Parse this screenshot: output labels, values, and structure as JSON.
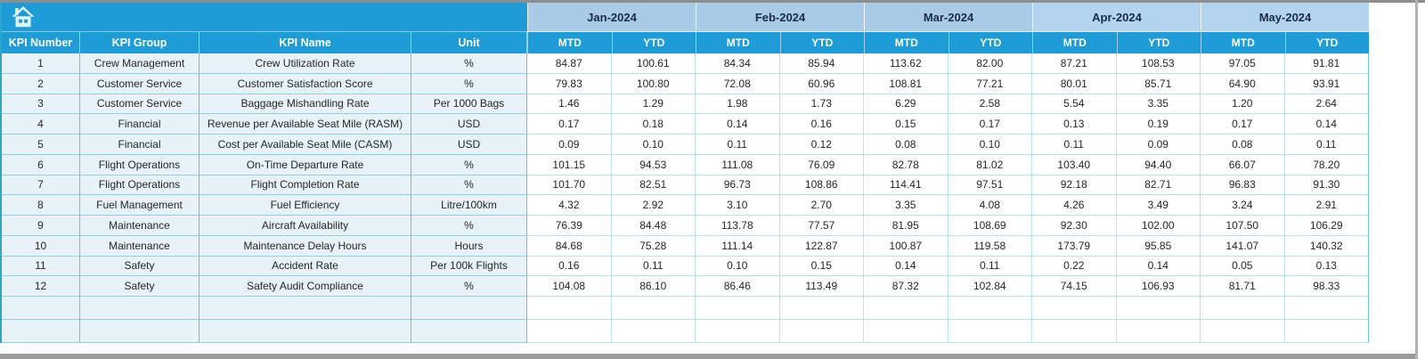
{
  "header": {
    "corner_icon": "home-icon",
    "months": [
      "Jan-2024",
      "Feb-2024",
      "Mar-2024",
      "Apr-2024",
      "May-2024"
    ],
    "period_labels": [
      "MTD",
      "YTD"
    ],
    "kpi_columns": [
      "KPI Number",
      "KPI Group",
      "KPI Name",
      "Unit"
    ]
  },
  "rows": [
    {
      "kpi_number": "1",
      "kpi_group": "Crew Management",
      "kpi_name": "Crew Utilization Rate",
      "unit": "%",
      "values": [
        "84.87",
        "100.61",
        "84.34",
        "85.94",
        "113.62",
        "82.00",
        "87.21",
        "108.53",
        "97.05",
        "91.81"
      ]
    },
    {
      "kpi_number": "2",
      "kpi_group": "Customer Service",
      "kpi_name": "Customer Satisfaction Score",
      "unit": "%",
      "values": [
        "79.83",
        "100.80",
        "72.08",
        "60.96",
        "108.81",
        "77.21",
        "80.01",
        "85.71",
        "64.90",
        "93.91"
      ]
    },
    {
      "kpi_number": "3",
      "kpi_group": "Customer Service",
      "kpi_name": "Baggage Mishandling Rate",
      "unit": "Per 1000 Bags",
      "values": [
        "1.46",
        "1.29",
        "1.98",
        "1.73",
        "6.29",
        "2.58",
        "5.54",
        "3.35",
        "1.20",
        "2.64"
      ]
    },
    {
      "kpi_number": "4",
      "kpi_group": "Financial",
      "kpi_name": "Revenue per Available Seat Mile (RASM)",
      "unit": "USD",
      "values": [
        "0.17",
        "0.18",
        "0.14",
        "0.16",
        "0.15",
        "0.17",
        "0.13",
        "0.19",
        "0.17",
        "0.14"
      ]
    },
    {
      "kpi_number": "5",
      "kpi_group": "Financial",
      "kpi_name": "Cost per Available Seat Mile (CASM)",
      "unit": "USD",
      "values": [
        "0.09",
        "0.10",
        "0.11",
        "0.12",
        "0.08",
        "0.10",
        "0.11",
        "0.09",
        "0.08",
        "0.11"
      ]
    },
    {
      "kpi_number": "6",
      "kpi_group": "Flight Operations",
      "kpi_name": "On-Time Departure Rate",
      "unit": "%",
      "values": [
        "101.15",
        "94.53",
        "111.08",
        "76.09",
        "82.78",
        "81.02",
        "103.40",
        "94.40",
        "66.07",
        "78.20"
      ]
    },
    {
      "kpi_number": "7",
      "kpi_group": "Flight Operations",
      "kpi_name": "Flight Completion Rate",
      "unit": "%",
      "values": [
        "101.70",
        "82.51",
        "96.73",
        "108.86",
        "114.41",
        "97.51",
        "92.18",
        "82.71",
        "96.83",
        "91.30"
      ]
    },
    {
      "kpi_number": "8",
      "kpi_group": "Fuel Management",
      "kpi_name": "Fuel Efficiency",
      "unit": "Litre/100km",
      "values": [
        "4.32",
        "2.92",
        "3.10",
        "2.70",
        "3.35",
        "4.08",
        "4.26",
        "3.49",
        "3.24",
        "2.91"
      ]
    },
    {
      "kpi_number": "9",
      "kpi_group": "Maintenance",
      "kpi_name": "Aircraft Availability",
      "unit": "%",
      "values": [
        "76.39",
        "84.48",
        "113.78",
        "77.57",
        "81.95",
        "108.69",
        "92.30",
        "102.00",
        "107.50",
        "106.29"
      ]
    },
    {
      "kpi_number": "10",
      "kpi_group": "Maintenance",
      "kpi_name": "Maintenance Delay Hours",
      "unit": "Hours",
      "values": [
        "84.68",
        "75.28",
        "111.14",
        "122.87",
        "100.87",
        "119.58",
        "173.79",
        "95.85",
        "141.07",
        "140.32"
      ]
    },
    {
      "kpi_number": "11",
      "kpi_group": "Safety",
      "kpi_name": "Accident Rate",
      "unit": "Per 100k Flights",
      "values": [
        "0.16",
        "0.11",
        "0.10",
        "0.15",
        "0.14",
        "0.11",
        "0.22",
        "0.14",
        "0.05",
        "0.13"
      ]
    },
    {
      "kpi_number": "12",
      "kpi_group": "Safety",
      "kpi_name": "Safety Audit Compliance",
      "unit": "%",
      "values": [
        "104.08",
        "86.10",
        "86.46",
        "113.49",
        "87.32",
        "102.84",
        "74.15",
        "106.93",
        "81.71",
        "98.33"
      ]
    }
  ],
  "empty_row_count": 2,
  "colors": {
    "header_blue": "#1E9CD7",
    "month_band": "#A9CBE8",
    "month_band_light": "#B3D3EE",
    "month_text": "#1B2A44",
    "row_tint": "#E7F3F9",
    "grid_teal": "#62C5DA",
    "grid_light": "#B5E2EC",
    "table_edge_teal": "#2BA7C9",
    "window_gray": "#9A9A9A",
    "icon_fill": "#DFF4FB"
  }
}
